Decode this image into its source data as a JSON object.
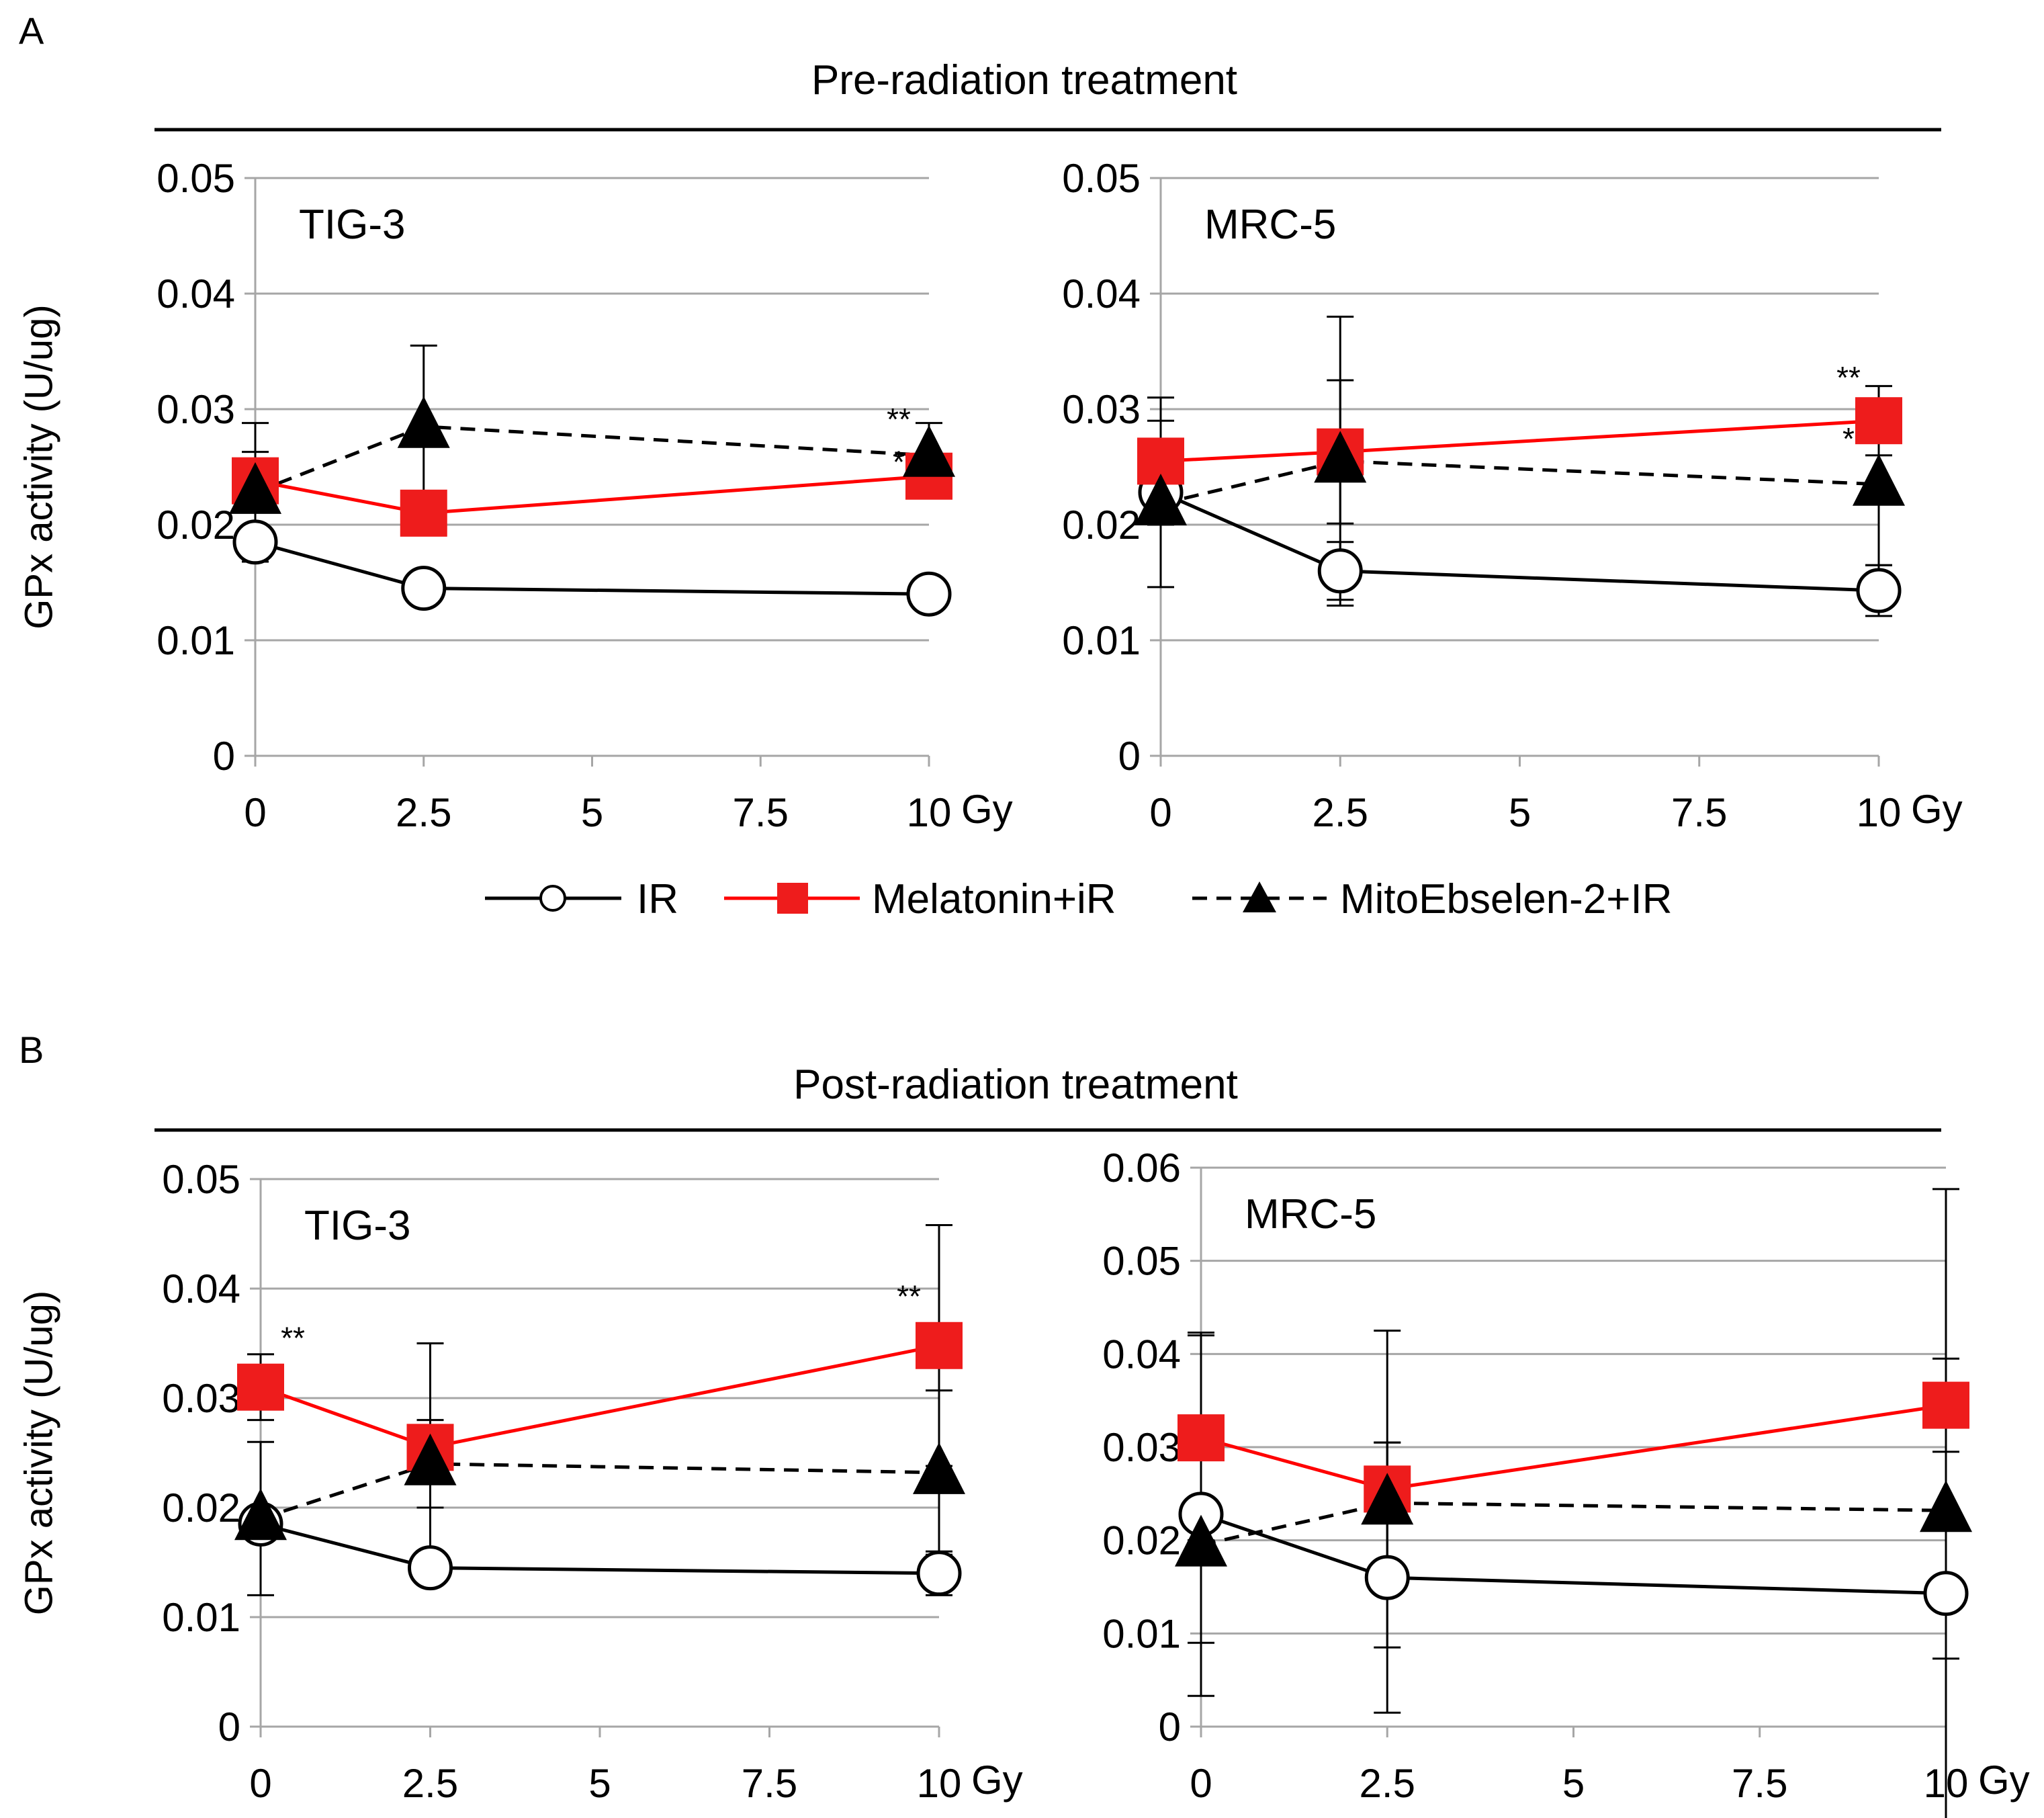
{
  "legend": [
    {
      "series": "ir",
      "label": "IR",
      "color": "#000000",
      "dashed": false,
      "marker": "circle",
      "fill": "#ffffff"
    },
    {
      "series": "mel",
      "label": "Melatonin+iR",
      "color": "#ff0000",
      "dashed": false,
      "marker": "square",
      "fill": "#ee1c1c"
    },
    {
      "series": "mito",
      "label": "MitoEbselen-2+IR",
      "color": "#000000",
      "dashed": true,
      "marker": "triangle",
      "fill": "#000000"
    }
  ],
  "sections": [
    {
      "letter": "A",
      "title": "Pre-radiation treatment"
    },
    {
      "letter": "B",
      "title": "Post-radiation treatment"
    }
  ],
  "colors": {
    "ir": "#000000",
    "melatonin": "#ff0000",
    "mitoebselen": "#000000",
    "grid": "#a6a6a6"
  },
  "chart_data": [
    {
      "type": "line",
      "section": "Pre-radiation treatment",
      "cell_line": "TIG-3",
      "ylabel": "GPx activity (U/ug)",
      "xlabel": "Gy",
      "x_ticks": [
        "0",
        "2.5",
        "5",
        "7.5",
        "10"
      ],
      "y_ticks": [
        "0",
        "0.01",
        "0.02",
        "0.03",
        "0.04",
        "0.05"
      ],
      "xlim": [
        0,
        10
      ],
      "ylim": [
        0,
        0.05
      ],
      "y_tick_values": [
        0,
        0.01,
        0.02,
        0.03,
        0.04,
        0.05
      ],
      "x": [
        0,
        2.5,
        10
      ],
      "series": [
        {
          "key": "ir",
          "name": "IR",
          "values": [
            0.0185,
            0.0145,
            0.014
          ],
          "err": [
            0,
            0,
            0
          ]
        },
        {
          "key": "mel",
          "name": "Melatonin+iR",
          "values": [
            0.0238,
            0.021,
            0.0242
          ],
          "err": [
            0.0025,
            0,
            0
          ]
        },
        {
          "key": "mito",
          "name": "MitoEbselen-2+IR",
          "values": [
            0.0228,
            0.0285,
            0.026
          ],
          "err": [
            0.006,
            0.007,
            0.0028
          ]
        }
      ],
      "annotations": [
        {
          "text": "**",
          "x": 10,
          "y": 0.0282
        },
        {
          "text": "*",
          "x": 10,
          "y": 0.0245
        }
      ]
    },
    {
      "type": "line",
      "section": "Pre-radiation treatment",
      "cell_line": "MRC-5",
      "ylabel": "",
      "xlabel": "Gy",
      "x_ticks": [
        "0",
        "2.5",
        "5",
        "7.5",
        "10"
      ],
      "y_ticks": [
        "0",
        "0.01",
        "0.02",
        "0.03",
        "0.04",
        "0.05"
      ],
      "xlim": [
        0,
        10
      ],
      "ylim": [
        0,
        0.05
      ],
      "y_tick_values": [
        0,
        0.01,
        0.02,
        0.03,
        0.04,
        0.05
      ],
      "x": [
        0,
        2.5,
        10
      ],
      "series": [
        {
          "key": "ir",
          "name": "IR",
          "values": [
            0.0228,
            0.016,
            0.0143
          ],
          "err": [
            0,
            0.0025,
            0.0022
          ]
        },
        {
          "key": "mel",
          "name": "Melatonin+iR",
          "values": [
            0.0255,
            0.0263,
            0.029
          ],
          "err": [
            0.0055,
            0.0062,
            0.003
          ]
        },
        {
          "key": "mito",
          "name": "MitoEbselen-2+IR",
          "values": [
            0.0218,
            0.0255,
            0.0235
          ],
          "err": [
            0.0072,
            0.0125,
            0.007
          ]
        }
      ],
      "annotations": [
        {
          "text": "**",
          "x": 10,
          "y": 0.0318
        },
        {
          "text": "*",
          "x": 10,
          "y": 0.0265
        }
      ]
    },
    {
      "type": "line",
      "section": "Post-radiation treatment",
      "cell_line": "TIG-3",
      "ylabel": "GPx activity (U/ug)",
      "xlabel": "Gy",
      "x_ticks": [
        "0",
        "2.5",
        "5",
        "7.5",
        "10"
      ],
      "y_ticks": [
        "0",
        "0.01",
        "0.02",
        "0.03",
        "0.04",
        "0.05"
      ],
      "xlim": [
        0,
        10
      ],
      "ylim": [
        0,
        0.05
      ],
      "y_tick_values": [
        0,
        0.01,
        0.02,
        0.03,
        0.04,
        0.05
      ],
      "x": [
        0,
        2.5,
        10
      ],
      "series": [
        {
          "key": "ir",
          "name": "IR",
          "values": [
            0.0185,
            0.0145,
            0.014
          ],
          "err": [
            0,
            0,
            0.002
          ]
        },
        {
          "key": "mel",
          "name": "Melatonin+iR",
          "values": [
            0.031,
            0.0255,
            0.0348
          ],
          "err": [
            0.003,
            0.0095,
            0.011
          ]
        },
        {
          "key": "mito",
          "name": "MitoEbselen-2+IR",
          "values": [
            0.019,
            0.024,
            0.0232
          ],
          "err": [
            0.007,
            0.004,
            0.0075
          ]
        }
      ],
      "annotations": [
        {
          "text": "**",
          "x": 0,
          "y": 0.0345
        },
        {
          "text": "**",
          "x": 10,
          "y": 0.0383
        }
      ]
    },
    {
      "type": "line",
      "section": "Post-radiation treatment",
      "cell_line": "MRC-5",
      "ylabel": "",
      "xlabel": "Gy",
      "x_ticks": [
        "0",
        "2.5",
        "5",
        "7.5",
        "10"
      ],
      "y_ticks": [
        "0",
        "0.01",
        "0.02",
        "0.03",
        "0.04",
        "0.05",
        "0.06"
      ],
      "xlim": [
        0,
        10
      ],
      "ylim": [
        0,
        0.06
      ],
      "y_tick_values": [
        0,
        0.01,
        0.02,
        0.03,
        0.04,
        0.05,
        0.06
      ],
      "x": [
        0,
        2.5,
        10
      ],
      "series": [
        {
          "key": "ir",
          "name": "IR",
          "values": [
            0.0228,
            0.016,
            0.0143
          ],
          "err": [
            0.0195,
            0.0145,
            0.007
          ]
        },
        {
          "key": "mel",
          "name": "Melatonin+iR",
          "values": [
            0.031,
            0.0255,
            0.0345
          ],
          "err": [
            0.011,
            0.017,
            0.005
          ]
        },
        {
          "key": "mito",
          "name": "MitoEbselen-2+IR",
          "values": [
            0.0195,
            0.024,
            0.0232
          ],
          "err": [
            0.0105,
            0.0065,
            0.0345
          ]
        }
      ],
      "annotations": []
    }
  ]
}
